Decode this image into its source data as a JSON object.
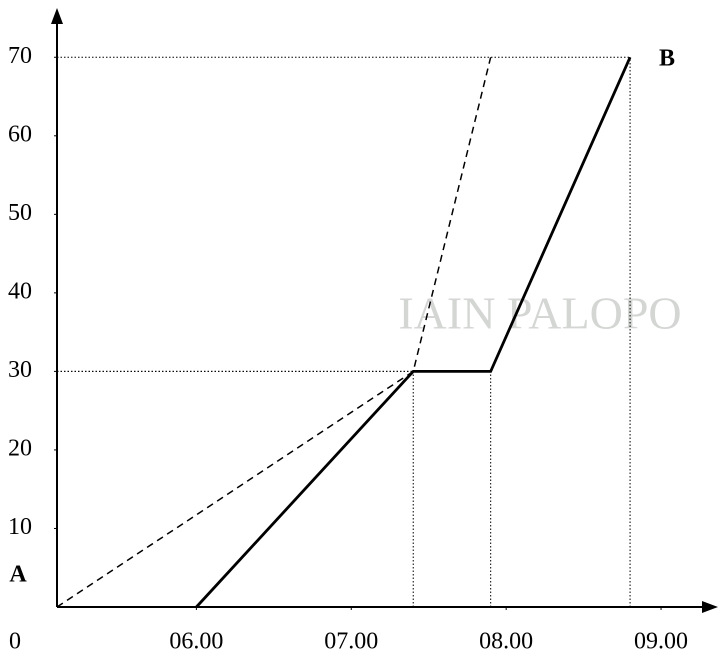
{
  "chart_data": {
    "type": "line",
    "watermark": "IAIN PALOPO",
    "origin_label": "0",
    "annotations": [
      "A",
      "B"
    ],
    "series": [
      {
        "color": "#000000",
        "dash": true,
        "x": [
          5.1,
          7.4,
          7.9
        ],
        "values": [
          0,
          30,
          70
        ]
      },
      {
        "color": "#000000",
        "dash": false,
        "x": [
          6.0,
          7.4,
          7.9,
          8.8
        ],
        "values": [
          0,
          30,
          30,
          70
        ]
      }
    ],
    "xlim": [
      5.1,
      9.4
    ],
    "ylim": [
      0,
      75
    ],
    "xticks": [
      {
        "value": 6,
        "label": "06.00"
      },
      {
        "value": 7,
        "label": "07.00"
      },
      {
        "value": 8,
        "label": "08.00"
      },
      {
        "value": 9,
        "label": "09.00"
      }
    ],
    "yticks": [
      10,
      20,
      30,
      40,
      50,
      60,
      70
    ]
  }
}
